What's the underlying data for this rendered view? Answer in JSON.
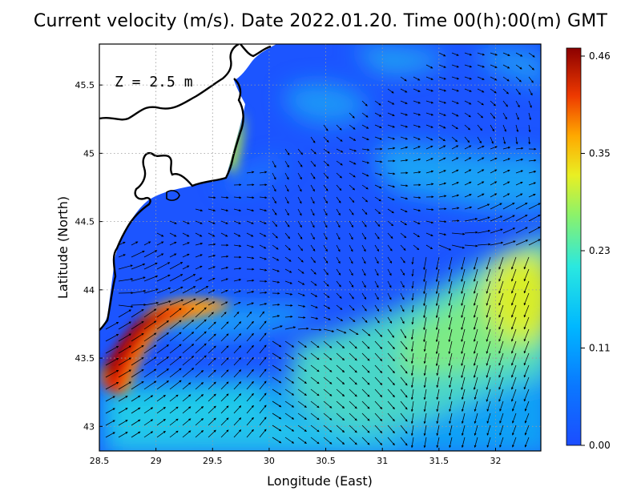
{
  "title": "Current velocity (m/s). Date 2022.01.20. Time 00(h):00(m) GMT",
  "depth_label": "Z = 2.5 m",
  "map": {
    "xlabel": "Longitude (East)",
    "ylabel": "Latitude (North)",
    "xlim": [
      28.5,
      32.4
    ],
    "ylim": [
      42.82,
      45.8
    ],
    "xticks": [
      "28.5",
      "29",
      "29.5",
      "30",
      "30.5",
      "31",
      "31.5",
      "32"
    ],
    "yticks": [
      "43",
      "43.5",
      "44",
      "44.5",
      "45",
      "45.5"
    ],
    "grid": "dotted",
    "land_color": "#ffffff",
    "coast_color": "#000000"
  },
  "colorbar": {
    "ticks": [
      "0.00",
      "0.11",
      "0.23",
      "0.35",
      "0.46"
    ],
    "min": 0.0,
    "max": 0.46,
    "colors": [
      "#1c4dff",
      "#00a8ff",
      "#18e6ee",
      "#7ef27a",
      "#e8f024",
      "#ff9a00",
      "#e81c00",
      "#8c0000"
    ]
  },
  "chart_data": {
    "type": "heatmap",
    "quantity": "Current velocity (m/s)",
    "date": "2022.01.20",
    "time": "00(h):00(m) GMT",
    "depth": "Z = 2.5 m",
    "xlabel": "Longitude (East)",
    "ylabel": "Latitude (North)",
    "xlim": [
      28.5,
      32.4
    ],
    "ylim": [
      42.82,
      45.8
    ],
    "speed_range": [
      0.0,
      0.46
    ],
    "features": [
      {
        "lon": 28.7,
        "lat": 43.6,
        "speed": 0.44
      },
      {
        "lon": 29.0,
        "lat": 43.85,
        "speed": 0.4
      },
      {
        "lon": 29.3,
        "lat": 43.78,
        "speed": 0.22
      },
      {
        "lon": 32.2,
        "lat": 43.9,
        "speed": 0.3
      },
      {
        "lon": 31.6,
        "lat": 43.75,
        "speed": 0.24
      },
      {
        "lon": 31.1,
        "lat": 43.45,
        "speed": 0.21
      },
      {
        "lon": 30.5,
        "lat": 43.3,
        "speed": 0.19
      },
      {
        "lon": 29.8,
        "lat": 43.15,
        "speed": 0.16
      },
      {
        "lon": 29.65,
        "lat": 44.9,
        "speed": 0.25
      },
      {
        "lon": 31.1,
        "lat": 44.92,
        "speed": 0.13
      },
      {
        "lon": 30.0,
        "lat": 44.3,
        "speed": 0.03
      }
    ]
  }
}
